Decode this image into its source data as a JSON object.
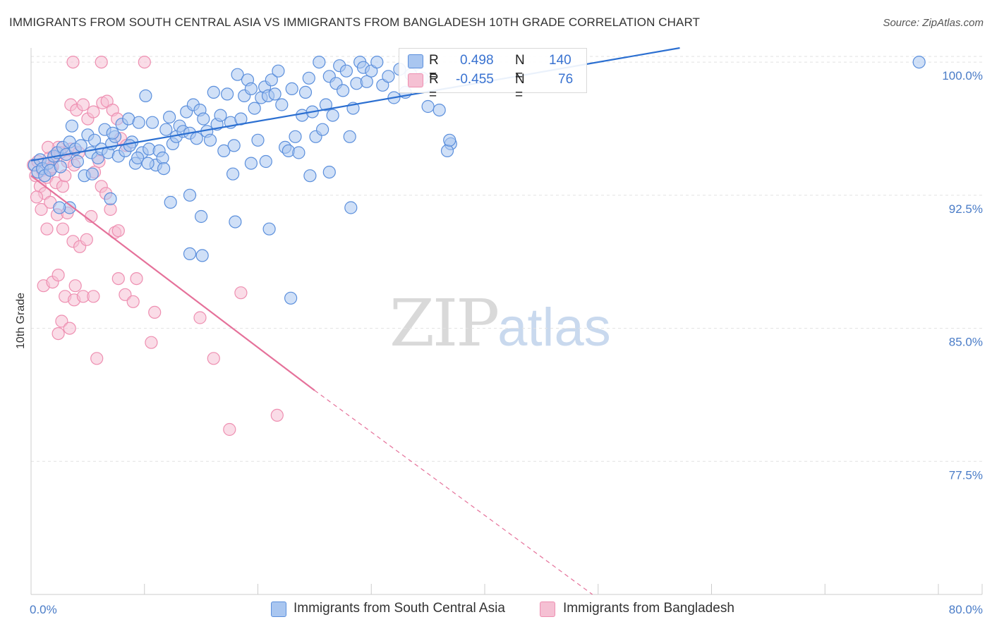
{
  "title": "IMMIGRANTS FROM SOUTH CENTRAL ASIA VS IMMIGRANTS FROM BANGLADESH 10TH GRADE CORRELATION CHART",
  "source": "Source: ZipAtlas.com",
  "watermark": {
    "zip": "ZIP",
    "atlas": "atlas"
  },
  "legend_top": {
    "series1": {
      "r_label": "R =",
      "r_value": "0.498",
      "n_label": "N =",
      "n_value": "140"
    },
    "series2": {
      "r_label": "R =",
      "r_value": "-0.455",
      "n_label": "N =",
      "n_value": "76"
    }
  },
  "legend_bottom": {
    "series1": "Immigrants from South Central Asia",
    "series2": "Immigrants from Bangladesh"
  },
  "colors": {
    "blue_fill": "#a9c6f0",
    "blue_stroke": "#5b8fdc",
    "blue_line": "#2b6fd1",
    "pink_fill": "#f5c0d3",
    "pink_stroke": "#ee8fb1",
    "pink_line": "#e5719a",
    "tick_text": "#4a7cc7",
    "grid": "#e2e2e2"
  },
  "chart_data": {
    "type": "scatter",
    "title": "IMMIGRANTS FROM SOUTH CENTRAL ASIA VS IMMIGRANTS FROM BANGLADESH 10TH GRADE CORRELATION CHART",
    "xlabel": "",
    "ylabel": "10th Grade",
    "xlim": [
      0,
      80
    ],
    "ylim": [
      70.0,
      100.8
    ],
    "x_tick_labels": [
      "0.0%",
      "80.0%"
    ],
    "y_ticks": [
      100.0,
      92.5,
      85.0,
      77.5
    ],
    "y_tick_labels": [
      "100.0%",
      "92.5%",
      "85.0%",
      "77.5%"
    ],
    "series": [
      {
        "name": "Immigrants from South Central Asia",
        "R": 0.498,
        "N": 140,
        "trend": {
          "x0": 0.0,
          "y0": 94.45,
          "x1": 57.2,
          "y1": 100.8
        },
        "points": [
          [
            0.3,
            94.2
          ],
          [
            0.6,
            93.8
          ],
          [
            0.8,
            94.5
          ],
          [
            1.0,
            94.0
          ],
          [
            1.2,
            93.6
          ],
          [
            1.5,
            94.3
          ],
          [
            1.7,
            93.9
          ],
          [
            2.0,
            94.7
          ],
          [
            2.3,
            94.9
          ],
          [
            2.6,
            94.1
          ],
          [
            2.8,
            95.2
          ],
          [
            3.1,
            94.8
          ],
          [
            3.4,
            95.5
          ],
          [
            3.6,
            96.4
          ],
          [
            3.9,
            95.1
          ],
          [
            4.1,
            94.4
          ],
          [
            4.4,
            95.3
          ],
          [
            4.7,
            93.6
          ],
          [
            5.0,
            95.9
          ],
          [
            5.3,
            94.9
          ],
          [
            5.6,
            95.6
          ],
          [
            5.9,
            94.6
          ],
          [
            6.2,
            95.1
          ],
          [
            6.5,
            96.2
          ],
          [
            6.8,
            94.9
          ],
          [
            7.1,
            95.4
          ],
          [
            7.4,
            95.8
          ],
          [
            7.7,
            94.7
          ],
          [
            8.0,
            96.5
          ],
          [
            8.3,
            95.0
          ],
          [
            8.6,
            96.8
          ],
          [
            8.9,
            95.5
          ],
          [
            9.2,
            94.3
          ],
          [
            9.5,
            96.6
          ],
          [
            9.8,
            94.9
          ],
          [
            10.1,
            98.1
          ],
          [
            10.4,
            95.1
          ],
          [
            10.7,
            96.6
          ],
          [
            11.0,
            94.2
          ],
          [
            11.3,
            95.0
          ],
          [
            11.6,
            94.6
          ],
          [
            11.9,
            96.2
          ],
          [
            12.2,
            96.9
          ],
          [
            12.5,
            95.4
          ],
          [
            12.8,
            95.8
          ],
          [
            13.1,
            96.4
          ],
          [
            13.4,
            96.1
          ],
          [
            13.7,
            97.2
          ],
          [
            14.0,
            96.0
          ],
          [
            14.3,
            97.6
          ],
          [
            14.6,
            95.7
          ],
          [
            14.9,
            97.3
          ],
          [
            15.2,
            96.8
          ],
          [
            15.5,
            96.1
          ],
          [
            15.8,
            95.6
          ],
          [
            16.1,
            98.3
          ],
          [
            16.4,
            96.5
          ],
          [
            16.7,
            97.0
          ],
          [
            17.0,
            95.0
          ],
          [
            17.3,
            98.2
          ],
          [
            17.6,
            96.6
          ],
          [
            17.9,
            95.3
          ],
          [
            18.2,
            99.3
          ],
          [
            18.5,
            96.8
          ],
          [
            18.8,
            98.1
          ],
          [
            19.1,
            99.0
          ],
          [
            19.4,
            98.5
          ],
          [
            19.7,
            97.4
          ],
          [
            20.0,
            95.6
          ],
          [
            20.3,
            98.0
          ],
          [
            20.6,
            98.6
          ],
          [
            20.9,
            98.1
          ],
          [
            21.2,
            99.0
          ],
          [
            21.5,
            98.2
          ],
          [
            21.8,
            99.5
          ],
          [
            22.1,
            97.6
          ],
          [
            22.4,
            95.2
          ],
          [
            22.7,
            95.0
          ],
          [
            23.0,
            98.5
          ],
          [
            23.3,
            95.8
          ],
          [
            23.6,
            94.9
          ],
          [
            23.9,
            97.0
          ],
          [
            24.2,
            98.3
          ],
          [
            24.5,
            99.1
          ],
          [
            24.8,
            97.2
          ],
          [
            25.1,
            95.8
          ],
          [
            25.4,
            100.0
          ],
          [
            25.7,
            96.2
          ],
          [
            26.0,
            97.6
          ],
          [
            26.3,
            99.2
          ],
          [
            26.6,
            97.0
          ],
          [
            26.9,
            98.8
          ],
          [
            27.2,
            99.8
          ],
          [
            27.5,
            98.4
          ],
          [
            27.8,
            99.5
          ],
          [
            28.1,
            95.8
          ],
          [
            28.4,
            97.4
          ],
          [
            28.7,
            98.8
          ],
          [
            29.0,
            100.0
          ],
          [
            29.3,
            99.7
          ],
          [
            29.6,
            98.9
          ],
          [
            30.0,
            99.5
          ],
          [
            30.5,
            100.0
          ],
          [
            31.0,
            98.7
          ],
          [
            31.5,
            99.2
          ],
          [
            32.0,
            98.0
          ],
          [
            32.5,
            99.6
          ],
          [
            33.0,
            98.3
          ],
          [
            33.5,
            99.3
          ],
          [
            34.0,
            99.9
          ],
          [
            34.5,
            99.1
          ],
          [
            35.0,
            97.5
          ],
          [
            36.0,
            97.3
          ],
          [
            37.0,
            95.4
          ],
          [
            7.0,
            92.3
          ],
          [
            9.4,
            94.6
          ],
          [
            12.3,
            92.1
          ],
          [
            14.0,
            92.5
          ],
          [
            15.0,
            91.3
          ],
          [
            17.8,
            93.7
          ],
          [
            18.0,
            91.0
          ],
          [
            19.4,
            94.3
          ],
          [
            20.7,
            94.4
          ],
          [
            21.0,
            90.6
          ],
          [
            22.9,
            86.7
          ],
          [
            24.6,
            93.6
          ],
          [
            26.3,
            93.8
          ],
          [
            28.2,
            91.8
          ],
          [
            11.7,
            94.0
          ],
          [
            14.0,
            89.2
          ],
          [
            15.1,
            89.1
          ],
          [
            5.4,
            93.7
          ],
          [
            3.4,
            91.8
          ],
          [
            2.5,
            91.8
          ],
          [
            36.7,
            95.0
          ],
          [
            36.9,
            95.6
          ],
          [
            78.3,
            100.0
          ],
          [
            7.2,
            96.0
          ],
          [
            8.7,
            95.3
          ],
          [
            10.3,
            94.3
          ]
        ]
      },
      {
        "name": "Immigrants from Bangladesh",
        "R": -0.455,
        "N": 76,
        "trend": {
          "x0": 0.0,
          "y0": 93.6,
          "x1": 25.0,
          "y1": 81.5
        },
        "trend_dashed": {
          "x0": 25.0,
          "y0": 81.5,
          "x1": 49.5,
          "y1": 70.0
        },
        "points": [
          [
            0.2,
            94.2
          ],
          [
            0.4,
            93.6
          ],
          [
            0.6,
            94.4
          ],
          [
            0.8,
            93.0
          ],
          [
            1.0,
            93.9
          ],
          [
            1.2,
            92.6
          ],
          [
            1.4,
            93.5
          ],
          [
            1.6,
            94.6
          ],
          [
            1.8,
            94.0
          ],
          [
            2.0,
            94.6
          ],
          [
            2.2,
            93.2
          ],
          [
            2.4,
            95.2
          ],
          [
            2.6,
            94.9
          ],
          [
            2.8,
            93.0
          ],
          [
            3.0,
            93.6
          ],
          [
            3.2,
            94.4
          ],
          [
            3.5,
            95.1
          ],
          [
            3.8,
            94.2
          ],
          [
            4.2,
            94.9
          ],
          [
            0.5,
            92.4
          ],
          [
            0.9,
            91.7
          ],
          [
            1.4,
            90.6
          ],
          [
            1.7,
            92.1
          ],
          [
            2.3,
            91.4
          ],
          [
            2.8,
            90.6
          ],
          [
            3.2,
            91.5
          ],
          [
            3.7,
            89.9
          ],
          [
            4.3,
            89.6
          ],
          [
            4.9,
            90.0
          ],
          [
            5.3,
            91.3
          ],
          [
            5.6,
            93.8
          ],
          [
            6.0,
            94.4
          ],
          [
            6.2,
            93.0
          ],
          [
            6.6,
            92.6
          ],
          [
            7.0,
            91.7
          ],
          [
            7.4,
            90.4
          ],
          [
            7.7,
            90.5
          ],
          [
            3.5,
            97.6
          ],
          [
            4.0,
            97.3
          ],
          [
            4.6,
            97.6
          ],
          [
            5.0,
            96.8
          ],
          [
            5.5,
            97.2
          ],
          [
            6.3,
            97.7
          ],
          [
            6.7,
            97.8
          ],
          [
            7.2,
            97.3
          ],
          [
            7.6,
            96.8
          ],
          [
            7.9,
            95.7
          ],
          [
            8.4,
            95.3
          ],
          [
            3.7,
            100.0
          ],
          [
            6.2,
            100.0
          ],
          [
            10.0,
            100.0
          ],
          [
            1.5,
            95.2
          ],
          [
            1.9,
            94.1
          ],
          [
            1.1,
            87.4
          ],
          [
            1.9,
            87.6
          ],
          [
            2.4,
            88.0
          ],
          [
            3.0,
            86.8
          ],
          [
            3.8,
            86.6
          ],
          [
            3.9,
            87.4
          ],
          [
            4.6,
            86.8
          ],
          [
            5.5,
            86.8
          ],
          [
            7.7,
            87.8
          ],
          [
            8.3,
            86.9
          ],
          [
            9.3,
            87.8
          ],
          [
            9.0,
            86.5
          ],
          [
            2.4,
            84.7
          ],
          [
            2.7,
            85.4
          ],
          [
            3.4,
            85.0
          ],
          [
            5.8,
            83.3
          ],
          [
            10.9,
            85.9
          ],
          [
            10.6,
            84.2
          ],
          [
            14.9,
            85.6
          ],
          [
            16.1,
            83.3
          ],
          [
            18.5,
            87.0
          ],
          [
            21.7,
            80.1
          ],
          [
            17.5,
            79.3
          ]
        ]
      }
    ]
  }
}
